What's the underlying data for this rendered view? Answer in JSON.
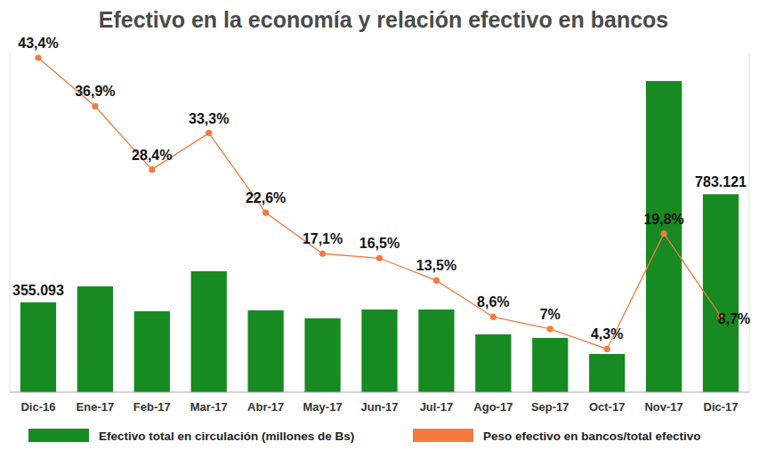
{
  "chart_data": {
    "type": "bar",
    "title": "Efectivo en la economía y relación efectivo en bancos",
    "categories": [
      "Dic-16",
      "Ene-17",
      "Feb-17",
      "Mar-17",
      "Abr-17",
      "May-17",
      "Jun-17",
      "Jul-17",
      "Ago-17",
      "Sep-17",
      "Oct-17",
      "Nov-17",
      "Dic-17"
    ],
    "series": [
      {
        "name": "Efectivo total en circulación (millones de Bs)",
        "type": "bar",
        "color": "#178a22",
        "values": [
          355093,
          418400,
          320000,
          478200,
          323500,
          291800,
          327000,
          327000,
          228500,
          214500,
          151200,
          1230600,
          783121
        ],
        "value_labels": [
          "355.093",
          null,
          null,
          null,
          null,
          null,
          null,
          null,
          null,
          null,
          null,
          null,
          "783.121"
        ],
        "data_labels": true
      },
      {
        "name": "Peso efectivo en bancos/total efectivo",
        "type": "line",
        "axis": "y2",
        "color": "#f47a42",
        "marker": "circle",
        "values": [
          43.4,
          36.9,
          28.4,
          33.3,
          22.6,
          17.1,
          16.5,
          13.5,
          8.6,
          7,
          4.3,
          19.8,
          8.7
        ],
        "value_labels": [
          "43,4%",
          "36,9%",
          "28,4%",
          "33,3%",
          "22,6%",
          "17,1%",
          "16,5%",
          "13,5%",
          "8,6%",
          "7%",
          "4,3%",
          "19,8%",
          "8,7%"
        ],
        "data_labels": true
      }
    ],
    "ylim": [
      0,
      1340000
    ],
    "yticks": [
      0
    ],
    "y2lim": [
      -1.5,
      44
    ],
    "tick_labels": false,
    "legend": "bottom"
  }
}
